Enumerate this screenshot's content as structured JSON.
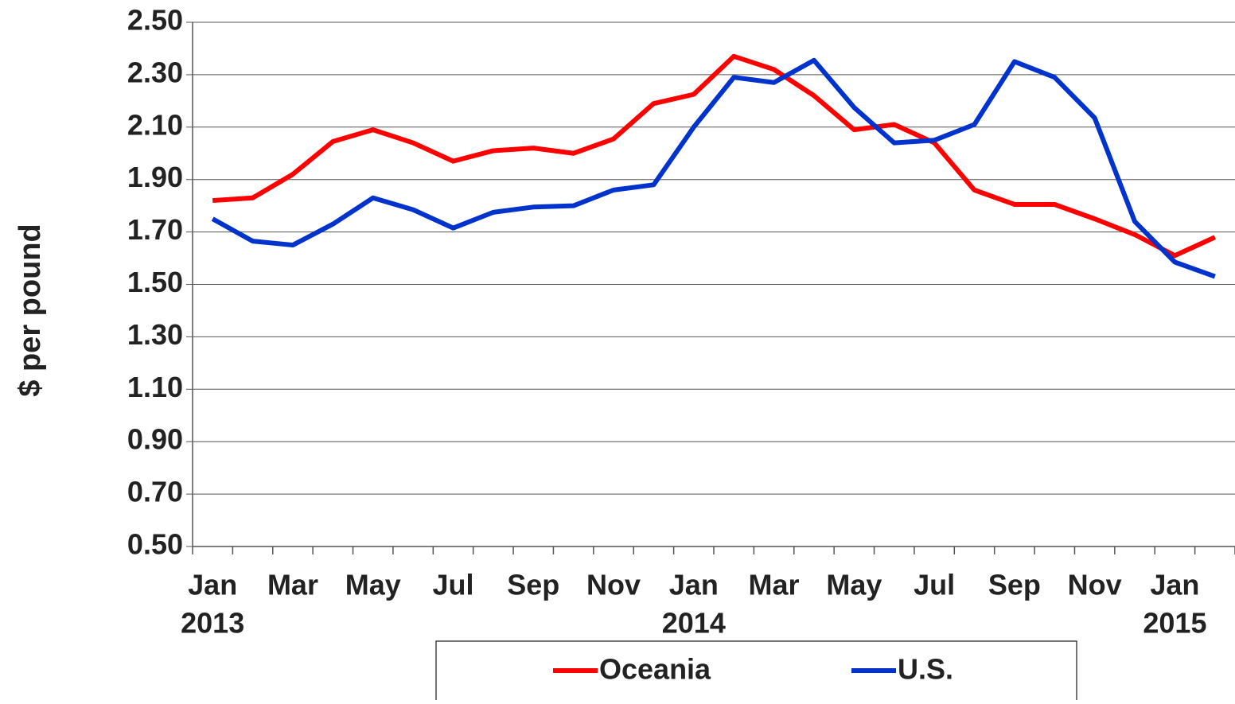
{
  "chart_data": {
    "type": "line",
    "y_label": "$ per pound",
    "categories": [
      "Jan",
      null,
      "Mar",
      null,
      "May",
      null,
      "Jul",
      null,
      "Sep",
      null,
      "Nov",
      null,
      "Jan",
      null,
      "Mar",
      null,
      "May",
      null,
      "Jul",
      null,
      "Sep",
      null,
      "Nov",
      null,
      "Jan",
      null
    ],
    "years": [
      "2013",
      null,
      null,
      null,
      null,
      null,
      null,
      null,
      null,
      null,
      null,
      null,
      "2014",
      null,
      null,
      null,
      null,
      null,
      null,
      null,
      null,
      null,
      null,
      null,
      "2015",
      null
    ],
    "series": [
      {
        "name": "Oceania",
        "color": "#ff0000",
        "values": [
          1.82,
          1.83,
          1.92,
          2.045,
          2.09,
          2.04,
          1.97,
          2.01,
          2.02,
          2.0,
          2.055,
          2.19,
          2.225,
          2.37,
          2.32,
          2.22,
          2.09,
          2.11,
          2.04,
          1.86,
          1.805,
          1.805,
          1.75,
          1.69,
          1.61,
          1.68
        ]
      },
      {
        "name": "U.S.",
        "color": "#0033cc",
        "values": [
          1.75,
          1.665,
          1.65,
          1.73,
          1.83,
          1.785,
          1.715,
          1.775,
          1.795,
          1.8,
          1.86,
          1.88,
          2.1,
          2.29,
          2.27,
          2.355,
          2.175,
          2.04,
          2.05,
          2.11,
          2.35,
          2.29,
          2.135,
          1.74,
          1.585,
          1.53
        ]
      }
    ],
    "ylim": [
      0.5,
      2.5
    ],
    "yticks": [
      {
        "value": 0.5,
        "label": "0.50"
      },
      {
        "value": 0.7,
        "label": "0.70"
      },
      {
        "value": 0.9,
        "label": "0.90"
      },
      {
        "value": 1.1,
        "label": "1.10"
      },
      {
        "value": 1.3,
        "label": "1.30"
      },
      {
        "value": 1.5,
        "label": "1.50"
      },
      {
        "value": 1.7,
        "label": "1.70"
      },
      {
        "value": 1.9,
        "label": "1.90"
      },
      {
        "value": 2.1,
        "label": "2.10"
      },
      {
        "value": 2.3,
        "label": "2.30"
      },
      {
        "value": 2.5,
        "label": "2.50"
      }
    ],
    "grid": true,
    "legend": "bottom"
  }
}
